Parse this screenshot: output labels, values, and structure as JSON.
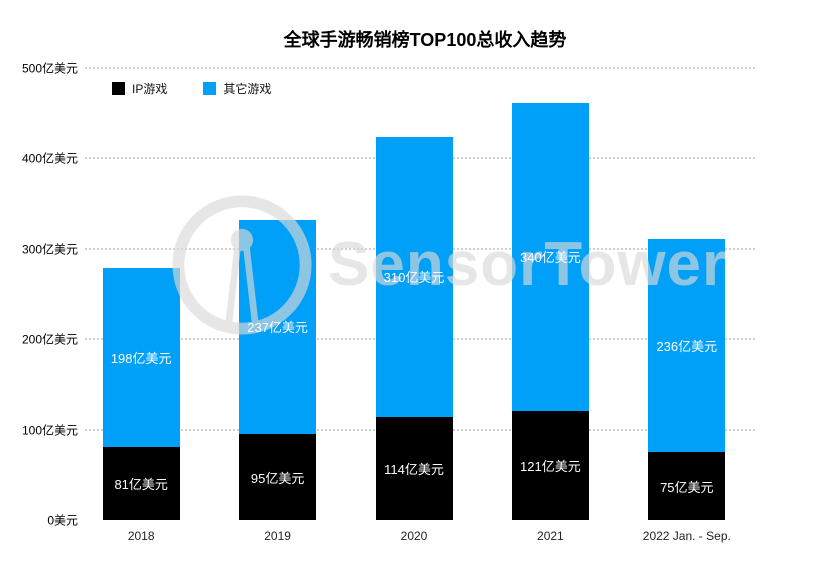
{
  "title": "全球手游畅销榜TOP100总收入趋势",
  "legend": {
    "items": [
      {
        "label": "IP游戏",
        "color": "#000000"
      },
      {
        "label": "其它游戏",
        "color": "#00a0f8"
      }
    ]
  },
  "watermark": {
    "text": "SensorTower",
    "logo_icon": "sensor-tower-logo",
    "color": "#d9d9d9"
  },
  "colors": {
    "ip_series": "#000000",
    "other_series": "#00a0f8",
    "gridline": "#cfcfcf",
    "value_label": "#ffffff",
    "axis_text": "#000000"
  },
  "chart_data": {
    "type": "bar",
    "stacked": true,
    "title": "全球手游畅销榜TOP100总收入趋势",
    "categories": [
      "2018",
      "2019",
      "2020",
      "2021",
      "2022 Jan. - Sep."
    ],
    "series": [
      {
        "name": "IP游戏",
        "color": "#000000",
        "values": [
          81,
          95,
          114,
          121,
          75
        ],
        "value_labels": [
          "81亿美元",
          "95亿美元",
          "114亿美元",
          "121亿美元",
          "75亿美元"
        ]
      },
      {
        "name": "其它游戏",
        "color": "#00a0f8",
        "values": [
          198,
          237,
          310,
          340,
          236
        ],
        "value_labels": [
          "198亿美元",
          "237亿美元",
          "310亿美元",
          "340亿美元",
          "236亿美元"
        ]
      }
    ],
    "ylim": [
      0,
      500
    ],
    "y_ticks": [
      {
        "value": 0,
        "label": "0美元"
      },
      {
        "value": 100,
        "label": "100亿美元"
      },
      {
        "value": 200,
        "label": "200亿美元"
      },
      {
        "value": 300,
        "label": "300亿美元"
      },
      {
        "value": 400,
        "label": "400亿美元"
      },
      {
        "value": 500,
        "label": "500亿美元"
      }
    ],
    "grid": "horizontal-dotted",
    "legend_position": "top-left",
    "value_labels_inside_bars": true
  }
}
